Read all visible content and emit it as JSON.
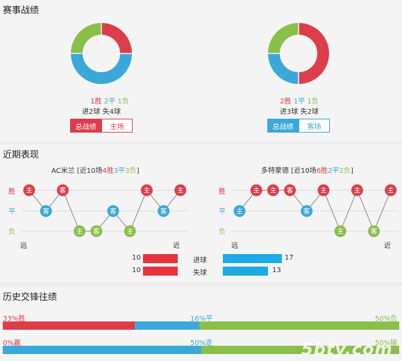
{
  "colors": {
    "win": "#dc3d4b",
    "draw": "#3aa8d8",
    "loss": "#8abf4a",
    "text": "#333333",
    "line": "#888888"
  },
  "record": {
    "title": "赛事战绩",
    "left": {
      "donut": [
        {
          "key": "win",
          "value": 1
        },
        {
          "key": "draw",
          "value": 2
        },
        {
          "key": "loss",
          "value": 1
        }
      ],
      "win": "1胜",
      "draw": "2平",
      "loss": "1负",
      "goals": "进2球 失4球",
      "tab_active": "总战绩",
      "tab_other": "主场"
    },
    "right": {
      "donut": [
        {
          "key": "win",
          "value": 2
        },
        {
          "key": "draw",
          "value": 1
        },
        {
          "key": "loss",
          "value": 1
        }
      ],
      "win": "2胜",
      "draw": "1平",
      "loss": "1负",
      "goals": "进3球 失2球",
      "tab_active": "总战绩",
      "tab_other": "客场"
    }
  },
  "form": {
    "title": "近期表现",
    "axis": {
      "win": "胜",
      "draw": "平",
      "loss": "负",
      "far": "远",
      "near": "近"
    },
    "left": {
      "team": "AC米兰",
      "pre": " [近10场",
      "w": "4胜",
      "d": "3平",
      "l": "3负",
      "post": "]",
      "matches": [
        {
          "result": "W",
          "venue": "主"
        },
        {
          "result": "D",
          "venue": "客"
        },
        {
          "result": "W",
          "venue": "客"
        },
        {
          "result": "L",
          "venue": "主"
        },
        {
          "result": "L",
          "venue": "客"
        },
        {
          "result": "D",
          "venue": "客"
        },
        {
          "result": "L",
          "venue": "主"
        },
        {
          "result": "W",
          "venue": "主"
        },
        {
          "result": "D",
          "venue": "客"
        },
        {
          "result": "W",
          "venue": "主"
        }
      ]
    },
    "right": {
      "team": "多特蒙德",
      "pre": " [近10场",
      "w": "6胜",
      "d": "2平",
      "l": "2负",
      "post": "]",
      "matches": [
        {
          "result": "D",
          "venue": "主"
        },
        {
          "result": "W",
          "venue": "主"
        },
        {
          "result": "W",
          "venue": "主"
        },
        {
          "result": "W",
          "venue": "客"
        },
        {
          "result": "D",
          "venue": "客"
        },
        {
          "result": "W",
          "venue": "主"
        },
        {
          "result": "L",
          "venue": "主"
        },
        {
          "result": "W",
          "venue": "主"
        },
        {
          "result": "L",
          "venue": "客"
        },
        {
          "result": "W",
          "venue": "主"
        }
      ]
    },
    "goals": {
      "scored_label": "进球",
      "conceded_label": "失球",
      "left_scored": 10,
      "left_conceded": 10,
      "right_scored": 17,
      "right_conceded": 13
    }
  },
  "history": {
    "title": "历史交锋往绩",
    "bar1": {
      "win_label": "33%胜",
      "draw_label": "16%平",
      "loss_label": "50%负",
      "win": 33,
      "draw": 16,
      "loss": 50
    },
    "bar2": {
      "win_label": "0%赢",
      "draw_label": "50%走",
      "loss_label": "50%输",
      "win": 0,
      "draw": 50,
      "loss": 50
    },
    "watermark": "5bty.com"
  }
}
